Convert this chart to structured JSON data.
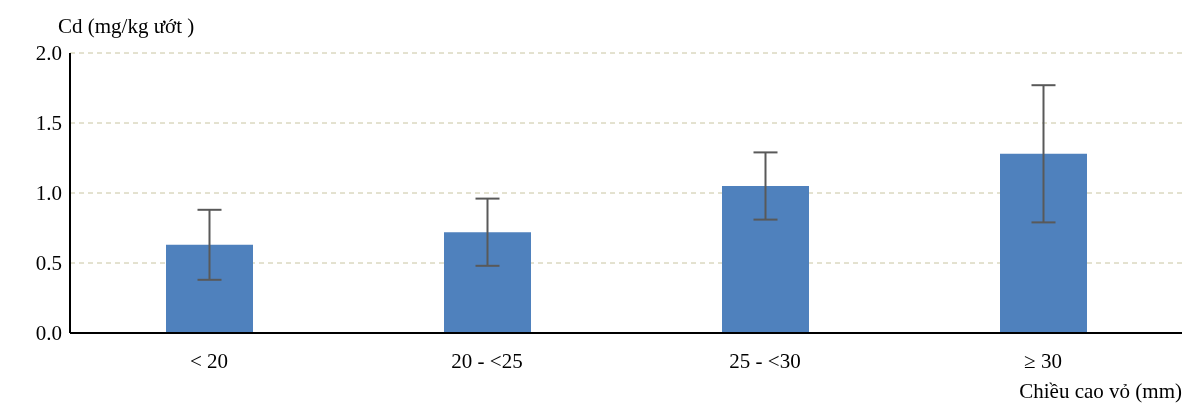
{
  "chart_data": {
    "type": "bar",
    "ylabel": "Cd (mg/kg ướt )",
    "xlabel": "Chiều cao vỏ (mm)",
    "categories": [
      "< 20",
      "20 - <25",
      "25 - <30",
      "≥ 30"
    ],
    "values": [
      0.63,
      0.72,
      1.05,
      1.28
    ],
    "errors": [
      0.25,
      0.24,
      0.24,
      0.49
    ],
    "color": "#4f81bd",
    "ylim": [
      0,
      2
    ],
    "yticks": [
      {
        "value": 0,
        "label": "0.0"
      },
      0.5,
      {
        "value": 1,
        "label": "1.0"
      },
      1.5,
      {
        "value": 2,
        "label": "2.0"
      }
    ],
    "grid": "y"
  }
}
